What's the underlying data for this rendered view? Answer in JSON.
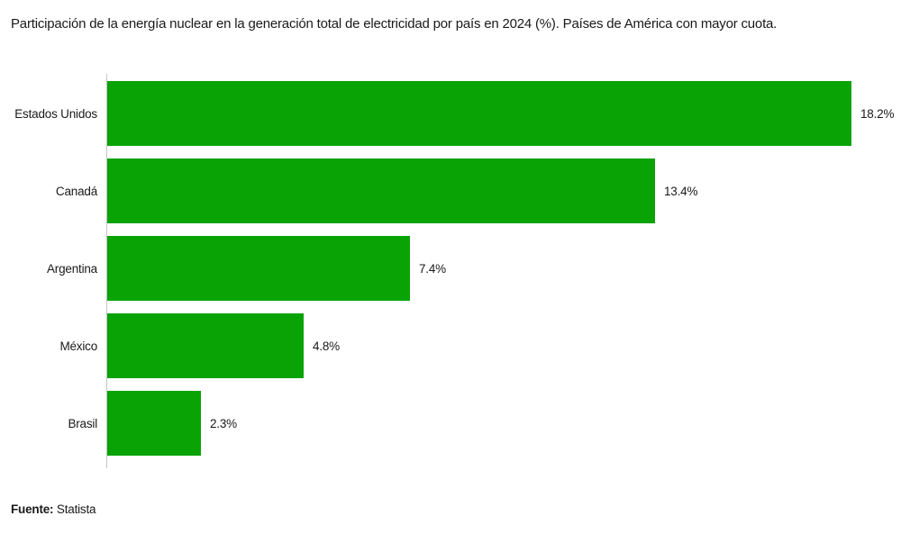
{
  "title": "Participación de la energía nuclear en la generación total de electricidad por país en 2024 (%). Países de América con mayor cuota.",
  "source": {
    "label": "Fuente:",
    "value": "Statista"
  },
  "colors": {
    "bar": "#0aa306",
    "axis": "#c4c4c4",
    "text": "#1a1a1a"
  },
  "chart_data": {
    "type": "bar",
    "orientation": "horizontal",
    "title": "Participación de la energía nuclear en la generación total de electricidad por país en 2024 (%). Países de América con mayor cuota.",
    "categories": [
      "Estados Unidos",
      "Canadá",
      "Argentina",
      "México",
      "Brasil"
    ],
    "values": [
      18.2,
      13.4,
      7.4,
      4.8,
      2.3
    ],
    "value_labels": [
      "18.2%",
      "13.4%",
      "7.4%",
      "4.8%",
      "2.3%"
    ],
    "xlabel": "",
    "ylabel": "",
    "xlim": [
      0,
      19.4
    ],
    "grid": false,
    "legend": false,
    "bar_color": "#0aa306"
  }
}
